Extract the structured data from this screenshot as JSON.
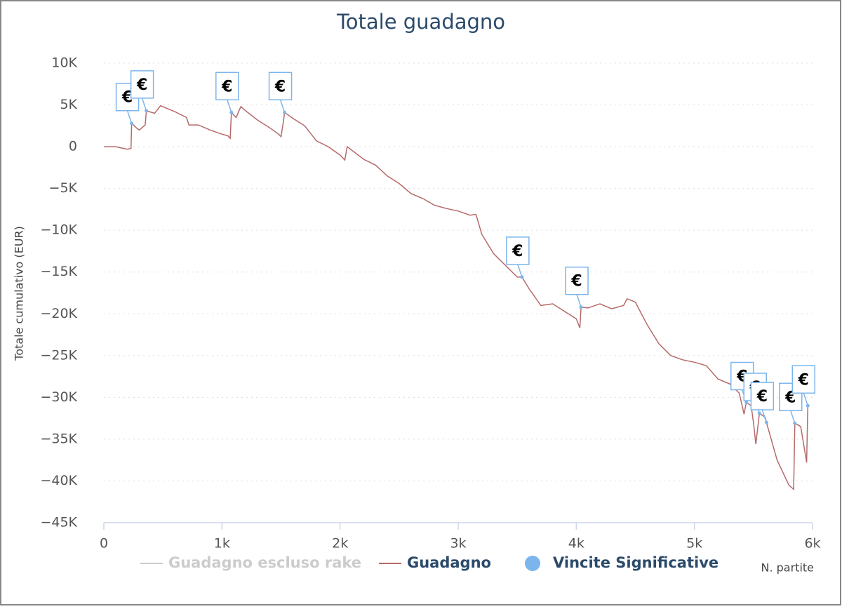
{
  "chart_data": {
    "type": "line",
    "title": "Totale guadagno",
    "y_label": "Totale cumulativo (EUR)",
    "x_label": "N. partite",
    "xlim": [
      0,
      6000
    ],
    "ylim": [
      -45000,
      10000
    ],
    "xticks": [
      0,
      {
        "value": 1000,
        "label": "1k"
      },
      {
        "value": 2000,
        "label": "2k"
      },
      {
        "value": 3000,
        "label": "3k"
      },
      {
        "value": 4000,
        "label": "4k"
      },
      {
        "value": 5000,
        "label": "5k"
      },
      {
        "value": 6000,
        "label": "6k"
      }
    ],
    "yticks": [
      {
        "value": 10000,
        "label": "10K"
      },
      {
        "value": 5000,
        "label": "5K"
      },
      0,
      {
        "value": -5000,
        "label": "−5K"
      },
      {
        "value": -10000,
        "label": "−10K"
      },
      {
        "value": -15000,
        "label": "−15K"
      },
      {
        "value": -20000,
        "label": "−20K"
      },
      {
        "value": -25000,
        "label": "−25K"
      },
      {
        "value": -30000,
        "label": "−30K"
      },
      {
        "value": -35000,
        "label": "−35K"
      },
      {
        "value": -40000,
        "label": "−40K"
      },
      {
        "value": -45000,
        "label": "−45K"
      }
    ],
    "grid": true,
    "flag_label": "€",
    "series": [
      {
        "name": "Guadagno escluso rake",
        "color": "#cccccc",
        "visible": false,
        "x": [],
        "values": []
      },
      {
        "name": "Guadagno",
        "color": "#b56a6a",
        "visible": true,
        "x": [
          0,
          100,
          200,
          230,
          235,
          280,
          300,
          350,
          360,
          430,
          480,
          600,
          700,
          720,
          800,
          900,
          1000,
          1050,
          1070,
          1080,
          1120,
          1160,
          1200,
          1300,
          1400,
          1480,
          1500,
          1520,
          1530,
          1600,
          1700,
          1800,
          1900,
          2000,
          2040,
          2060,
          2200,
          2300,
          2400,
          2500,
          2600,
          2700,
          2800,
          2900,
          3000,
          3100,
          3150,
          3200,
          3300,
          3400,
          3500,
          3540,
          3600,
          3700,
          3800,
          3900,
          4000,
          4030,
          4040,
          4100,
          4200,
          4300,
          4400,
          4430,
          4500,
          4600,
          4700,
          4800,
          4900,
          5000,
          5100,
          5200,
          5300,
          5380,
          5420,
          5440,
          5480,
          5500,
          5520,
          5550,
          5600,
          5610,
          5700,
          5800,
          5840,
          5850,
          5900,
          5950,
          5960
        ],
        "values": [
          0,
          0,
          -300,
          -200,
          2800,
          2200,
          2000,
          2600,
          4300,
          4000,
          4900,
          4200,
          3500,
          2600,
          2600,
          2000,
          1500,
          1300,
          1000,
          4100,
          3500,
          4800,
          4300,
          3200,
          2300,
          1500,
          1200,
          3000,
          4100,
          3400,
          2500,
          700,
          0,
          -1000,
          -1600,
          0,
          -1500,
          -2200,
          -3500,
          -4400,
          -5600,
          -6200,
          -7000,
          -7400,
          -7700,
          -8200,
          -8100,
          -10500,
          -12800,
          -14200,
          -15600,
          -15600,
          -17000,
          -19000,
          -18800,
          -19700,
          -20600,
          -21700,
          -19200,
          -19300,
          -18800,
          -19400,
          -19000,
          -18200,
          -18600,
          -21300,
          -23600,
          -25000,
          -25500,
          -25800,
          -26200,
          -27800,
          -28400,
          -29500,
          -32000,
          -30600,
          -31000,
          -33000,
          -35600,
          -31900,
          -32400,
          -33000,
          -37500,
          -40500,
          -41000,
          -33100,
          -33500,
          -37800,
          -31000
        ]
      },
      {
        "name": "Vincite Significative",
        "color": "#7cb5ec",
        "visible": true,
        "type": "flags",
        "x": [
          235,
          360,
          1080,
          1530,
          3540,
          4040,
          5440,
          5550,
          5610,
          5850,
          5960
        ],
        "values": [
          2800,
          4300,
          4100,
          4100,
          -15600,
          -19200,
          -30600,
          -31900,
          -33000,
          -33100,
          -31000
        ]
      }
    ]
  }
}
